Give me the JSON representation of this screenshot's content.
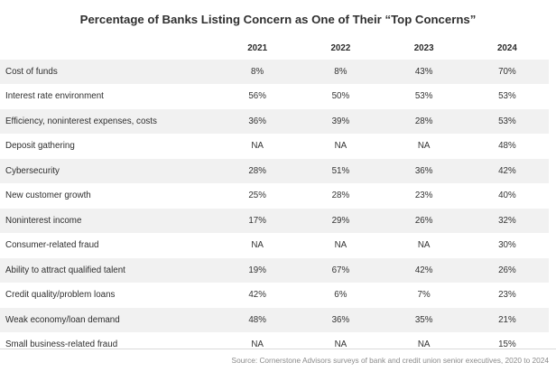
{
  "chart_data": {
    "type": "table",
    "title": "Percentage of Banks Listing Concern as One of Their “Top Concerns”",
    "columns": [
      "2021",
      "2022",
      "2023",
      "2024"
    ],
    "rows": [
      {
        "label": "Cost of funds",
        "values": [
          "8%",
          "8%",
          "43%",
          "70%"
        ]
      },
      {
        "label": "Interest rate environment",
        "values": [
          "56%",
          "50%",
          "53%",
          "53%"
        ]
      },
      {
        "label": "Efficiency, noninterest expenses, costs",
        "values": [
          "36%",
          "39%",
          "28%",
          "53%"
        ]
      },
      {
        "label": "Deposit gathering",
        "values": [
          "NA",
          "NA",
          "NA",
          "48%"
        ]
      },
      {
        "label": "Cybersecurity",
        "values": [
          "28%",
          "51%",
          "36%",
          "42%"
        ]
      },
      {
        "label": "New customer growth",
        "values": [
          "25%",
          "28%",
          "23%",
          "40%"
        ]
      },
      {
        "label": "Noninterest income",
        "values": [
          "17%",
          "29%",
          "26%",
          "32%"
        ]
      },
      {
        "label": "Consumer-related fraud",
        "values": [
          "NA",
          "NA",
          "NA",
          "30%"
        ]
      },
      {
        "label": "Ability to attract qualified talent",
        "values": [
          "19%",
          "67%",
          "42%",
          "26%"
        ]
      },
      {
        "label": "Credit quality/problem loans",
        "values": [
          "42%",
          "6%",
          "7%",
          "23%"
        ]
      },
      {
        "label": "Weak economy/loan demand",
        "values": [
          "48%",
          "36%",
          "35%",
          "21%"
        ]
      },
      {
        "label": "Small business-related fraud",
        "values": [
          "NA",
          "NA",
          "NA",
          "15%"
        ]
      }
    ],
    "source": "Source: Cornerstone Advisors surveys of bank and credit union senior executives, 2020 to 2024"
  },
  "colors": {
    "stripe": "#f1f1f1",
    "text": "#2b2b2b",
    "source_text": "#8a8a8a"
  }
}
